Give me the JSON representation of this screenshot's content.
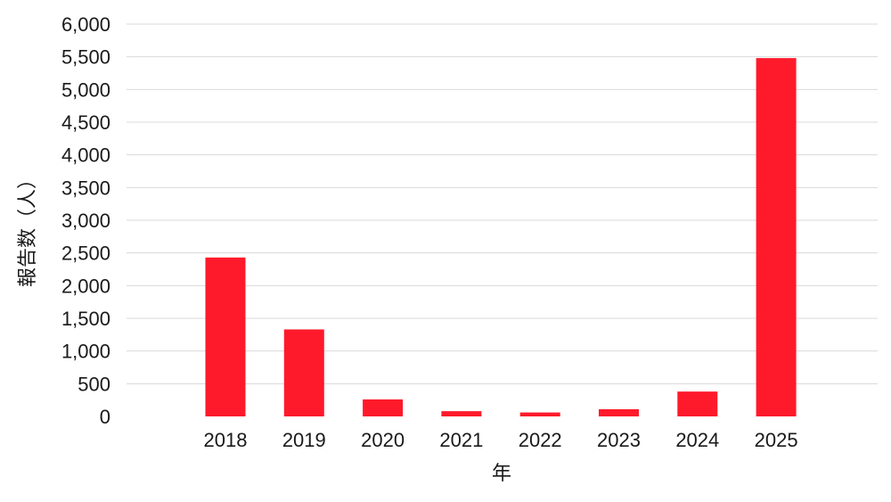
{
  "chart_data": {
    "type": "bar",
    "categories": [
      "2018",
      "2019",
      "2020",
      "2021",
      "2022",
      "2023",
      "2024",
      "2025"
    ],
    "values": [
      2430,
      1330,
      260,
      80,
      60,
      110,
      380,
      5480
    ],
    "xlabel": "年",
    "ylabel": "報告数（人）",
    "ylim": [
      0,
      6000
    ],
    "yticks": [
      "0",
      "500",
      "1,000",
      "1,500",
      "2,000",
      "2,500",
      "3,000",
      "3,500",
      "4,000",
      "4,500",
      "5,000",
      "5,500",
      "6,000"
    ],
    "grid": true,
    "legend": "none",
    "bar_color": "#ff1a2b"
  }
}
